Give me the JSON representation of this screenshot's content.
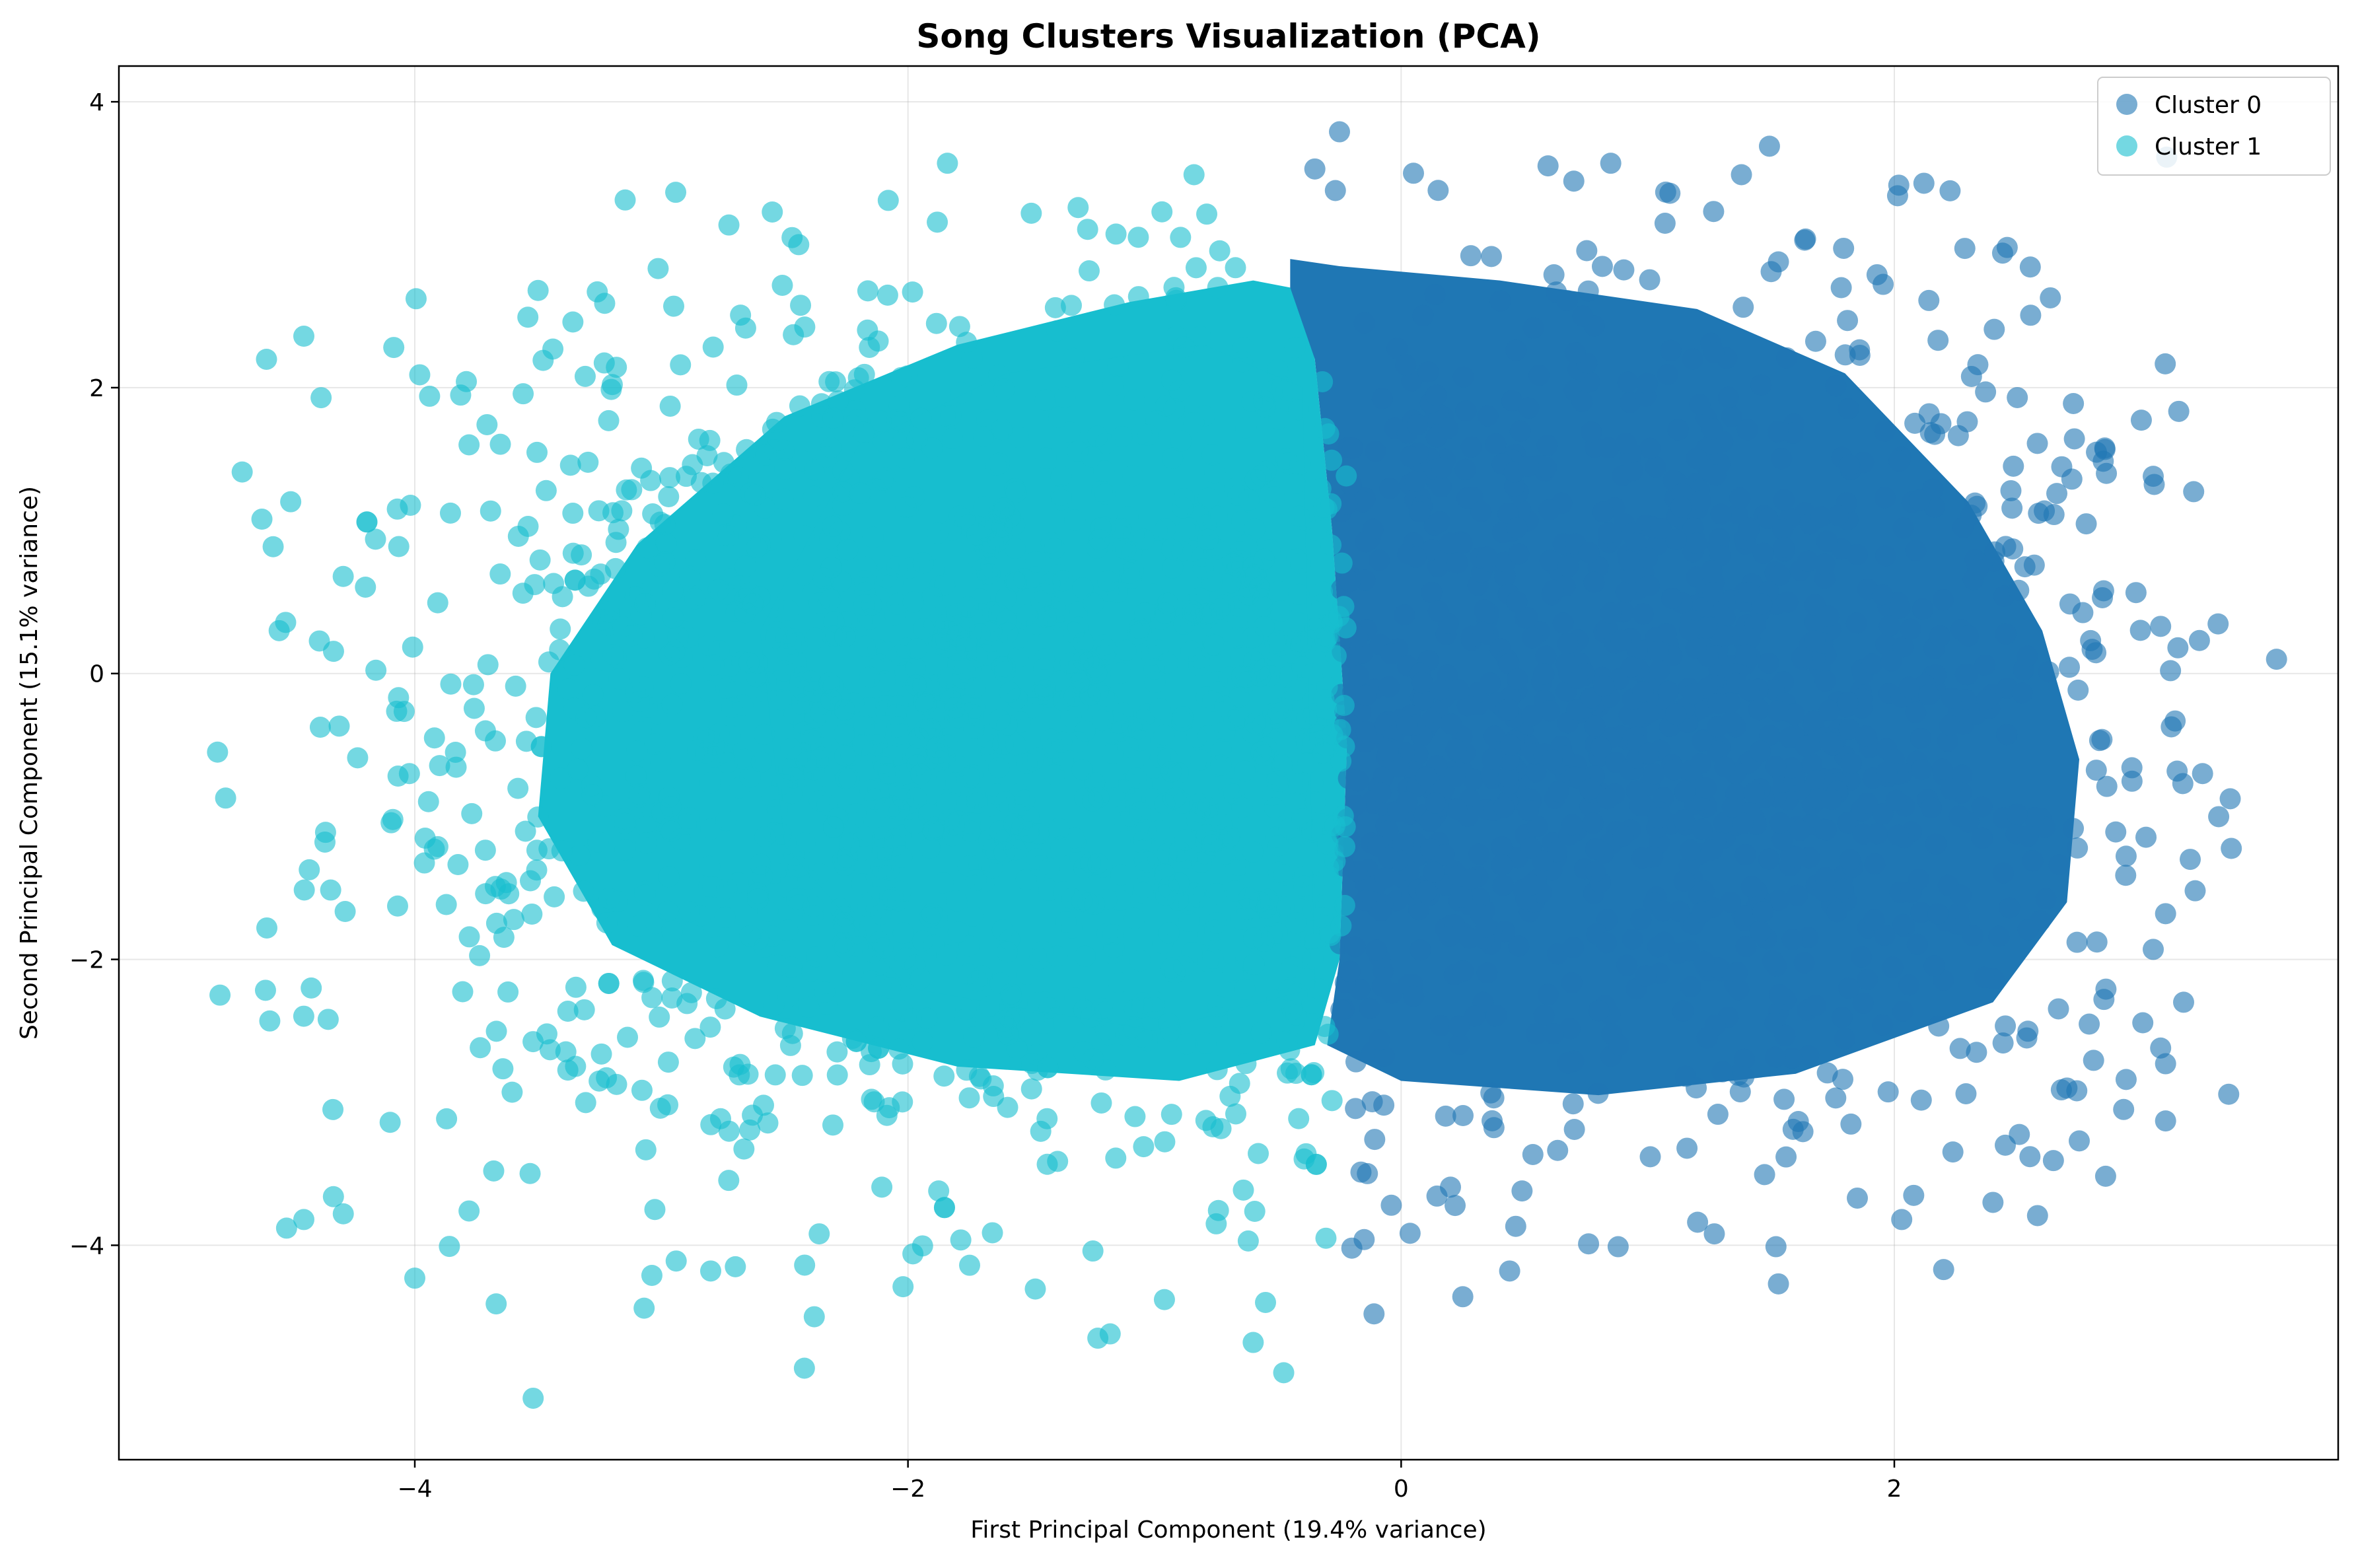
{
  "chart_data": {
    "type": "scatter",
    "title": "Song Clusters Visualization (PCA)",
    "xlabel": "First Principal Component (19.4% variance)",
    "ylabel": "Second Principal Component (15.1% variance)",
    "xlim": [
      -5.2,
      3.8
    ],
    "ylim": [
      -5.5,
      4.25
    ],
    "xticks": [
      -4,
      -2,
      0,
      2
    ],
    "yticks": [
      -4,
      -2,
      0,
      2,
      4
    ],
    "xtick_labels": [
      "−4",
      "−2",
      "0",
      "2"
    ],
    "ytick_labels": [
      "−4",
      "−2",
      "0",
      "2",
      "4"
    ],
    "grid": true,
    "legend_position": "top-right",
    "marker_alpha": 0.6,
    "series": [
      {
        "name": "Cluster 0",
        "color": "#1f77b4",
        "approx_count": 9000,
        "x_range": [
          -0.6,
          3.6
        ],
        "y_range": [
          -4.5,
          3.8
        ],
        "points": [
          [
            3.55,
            0.1
          ],
          [
            3.25,
            -0.7
          ],
          [
            3.17,
            -0.77
          ],
          [
            3.2,
            -1.3
          ],
          [
            3.22,
            -1.52
          ],
          [
            3.15,
            0.18
          ],
          [
            3.08,
            0.33
          ],
          [
            3.12,
            0.02
          ],
          [
            3.05,
            1.38
          ],
          [
            3.1,
            -1.68
          ],
          [
            3.05,
            -1.93
          ],
          [
            3.08,
            -2.62
          ],
          [
            3.1,
            -2.73
          ],
          [
            3.1,
            -3.13
          ],
          [
            2.94,
            -2.84
          ],
          [
            2.93,
            -3.05
          ],
          [
            2.86,
            1.4
          ],
          [
            2.72,
            1.36
          ],
          [
            2.58,
            1.61
          ],
          [
            2.12,
            3.43
          ],
          [
            2.37,
            1.97
          ],
          [
            2.14,
            2.61
          ],
          [
            1.93,
            2.79
          ],
          [
            1.81,
            2.47
          ],
          [
            1.64,
            3.04
          ],
          [
            0.85,
            3.57
          ],
          [
            1.38,
            3.49
          ],
          [
            0.15,
            3.38
          ],
          [
            -0.25,
            3.79
          ],
          [
            -0.35,
            3.53
          ],
          [
            0.05,
            3.5
          ],
          [
            1.09,
            3.36
          ],
          [
            1.53,
            2.88
          ],
          [
            2.2,
            -4.17
          ],
          [
            2.03,
            -3.82
          ],
          [
            1.85,
            -3.67
          ],
          [
            1.52,
            -4.01
          ],
          [
            1.53,
            -4.27
          ],
          [
            1.27,
            -3.92
          ],
          [
            0.88,
            -4.01
          ],
          [
            0.76,
            -3.99
          ],
          [
            0.44,
            -4.18
          ],
          [
            0.25,
            -4.36
          ],
          [
            -0.11,
            -4.48
          ],
          [
            -0.15,
            -3.96
          ],
          [
            -0.2,
            -4.02
          ],
          [
            -0.04,
            -3.72
          ],
          [
            2.4,
            -3.7
          ],
          [
            2.45,
            -3.3
          ],
          [
            2.55,
            -3.38
          ],
          [
            2.75,
            -3.27
          ],
          [
            2.7,
            -2.9
          ],
          [
            2.85,
            -2.28
          ]
        ]
      },
      {
        "name": "Cluster 1",
        "color": "#17becf",
        "approx_count": 9000,
        "x_range": [
          -4.8,
          -0.2
        ],
        "y_range": [
          -5.1,
          3.6
        ],
        "points": [
          [
            -4.8,
            -0.55
          ],
          [
            -4.79,
            -2.25
          ],
          [
            -4.7,
            1.41
          ],
          [
            -4.62,
            1.08
          ],
          [
            -4.6,
            -1.78
          ],
          [
            -4.55,
            0.3
          ],
          [
            -4.45,
            2.36
          ],
          [
            -4.38,
            1.93
          ],
          [
            -4.42,
            -2.2
          ],
          [
            -4.52,
            -3.88
          ],
          [
            -4.45,
            -3.82
          ],
          [
            -4.33,
            -3.66
          ],
          [
            -4.29,
            -3.78
          ],
          [
            -4.1,
            -3.14
          ],
          [
            -4.0,
            -4.23
          ],
          [
            -3.98,
            2.09
          ],
          [
            -3.94,
            1.94
          ],
          [
            -3.78,
            1.6
          ],
          [
            -3.78,
            -3.76
          ],
          [
            -3.68,
            -3.48
          ],
          [
            -3.67,
            -4.41
          ],
          [
            -3.52,
            -5.07
          ],
          [
            -3.5,
            2.68
          ],
          [
            -3.44,
            2.27
          ],
          [
            -3.26,
            2.67
          ],
          [
            -3.23,
            2.59
          ],
          [
            -3.07,
            -4.44
          ],
          [
            -2.94,
            -4.11
          ],
          [
            -2.95,
            2.57
          ],
          [
            -2.8,
            -4.18
          ],
          [
            -2.7,
            -4.15
          ],
          [
            -2.47,
            3.05
          ],
          [
            -2.42,
            -4.86
          ],
          [
            -2.38,
            -4.5
          ],
          [
            -2.36,
            -3.92
          ],
          [
            -2.08,
            3.31
          ],
          [
            -2.02,
            -4.29
          ],
          [
            -1.98,
            -4.06
          ],
          [
            -1.84,
            3.57
          ],
          [
            -1.5,
            3.22
          ],
          [
            -1.75,
            -4.14
          ],
          [
            -1.31,
            3.26
          ],
          [
            -1.25,
            -4.04
          ],
          [
            -1.23,
            -4.65
          ],
          [
            -1.18,
            -4.62
          ],
          [
            -0.97,
            3.23
          ],
          [
            -0.84,
            3.49
          ],
          [
            -0.96,
            -4.38
          ],
          [
            -0.6,
            -4.68
          ],
          [
            -0.55,
            -4.4
          ],
          [
            -0.62,
            -3.97
          ],
          [
            -0.75,
            -3.85
          ]
        ]
      }
    ]
  }
}
